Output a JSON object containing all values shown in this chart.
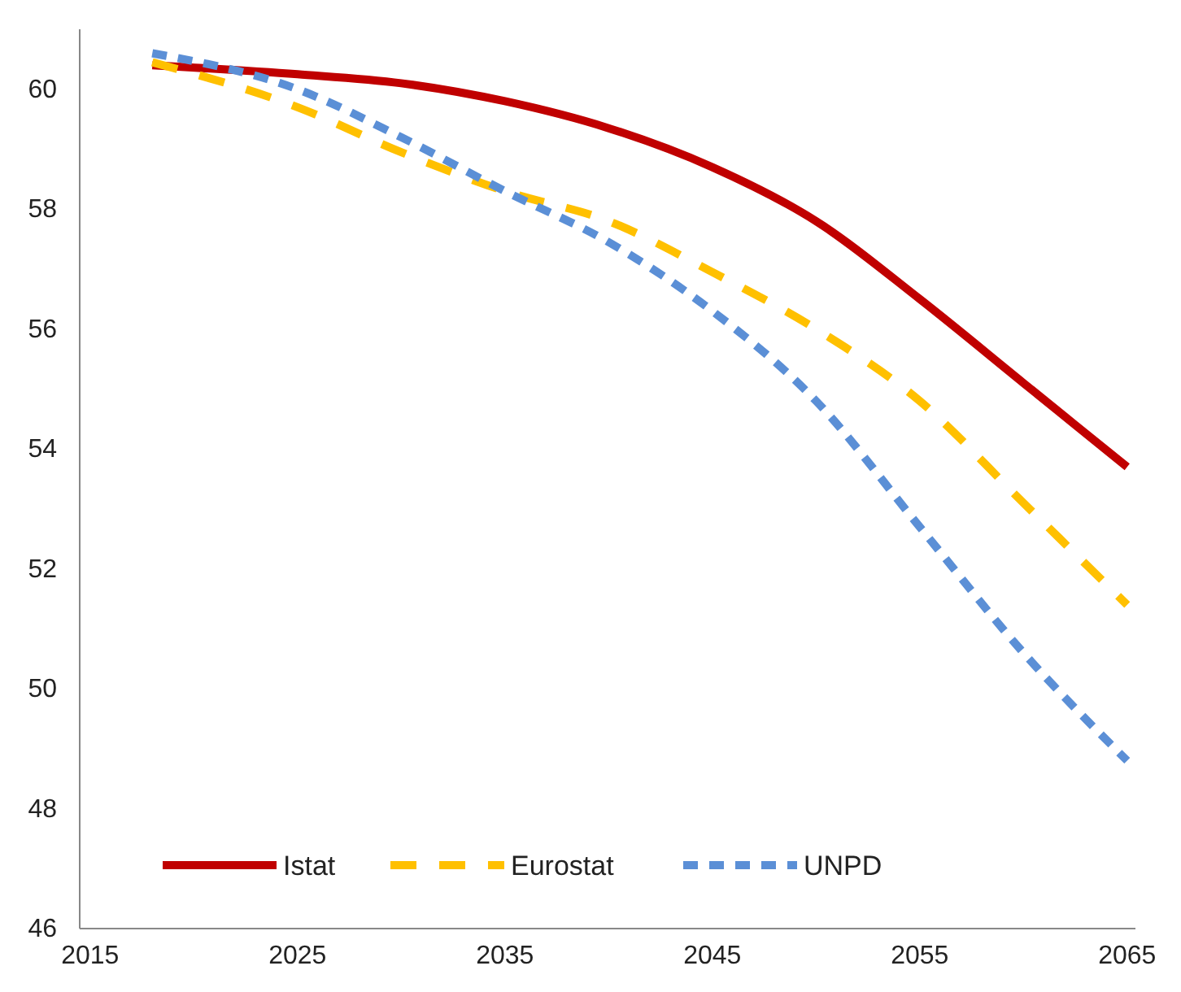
{
  "chart_data": {
    "type": "line",
    "x": [
      2018,
      2025,
      2030,
      2035,
      2040,
      2045,
      2050,
      2055,
      2060,
      2065
    ],
    "series": [
      {
        "name": "Istat",
        "color": "#c00000",
        "line_style": "solid",
        "values": [
          60.4,
          60.25,
          60.1,
          59.8,
          59.35,
          58.7,
          57.8,
          56.5,
          55.1,
          53.7
        ]
      },
      {
        "name": "Eurostat",
        "color": "#ffc000",
        "line_style": "dashed",
        "values": [
          60.45,
          59.7,
          58.95,
          58.3,
          57.8,
          56.95,
          56.0,
          54.8,
          53.1,
          51.4
        ]
      },
      {
        "name": "UNPD",
        "color": "#5b8fd6",
        "line_style": "dotted",
        "values": [
          60.6,
          60.0,
          59.2,
          58.3,
          57.45,
          56.3,
          54.8,
          52.7,
          50.6,
          48.8
        ]
      }
    ],
    "xlim": [
      2014.5,
      2065.4
    ],
    "xticks": [
      2015,
      2025,
      2035,
      2045,
      2055,
      2065
    ],
    "ylim": [
      46,
      61
    ],
    "yticks": [
      46,
      48,
      50,
      52,
      54,
      56,
      58,
      60
    ],
    "grid": false,
    "legend": "bottom",
    "marker": "none"
  }
}
